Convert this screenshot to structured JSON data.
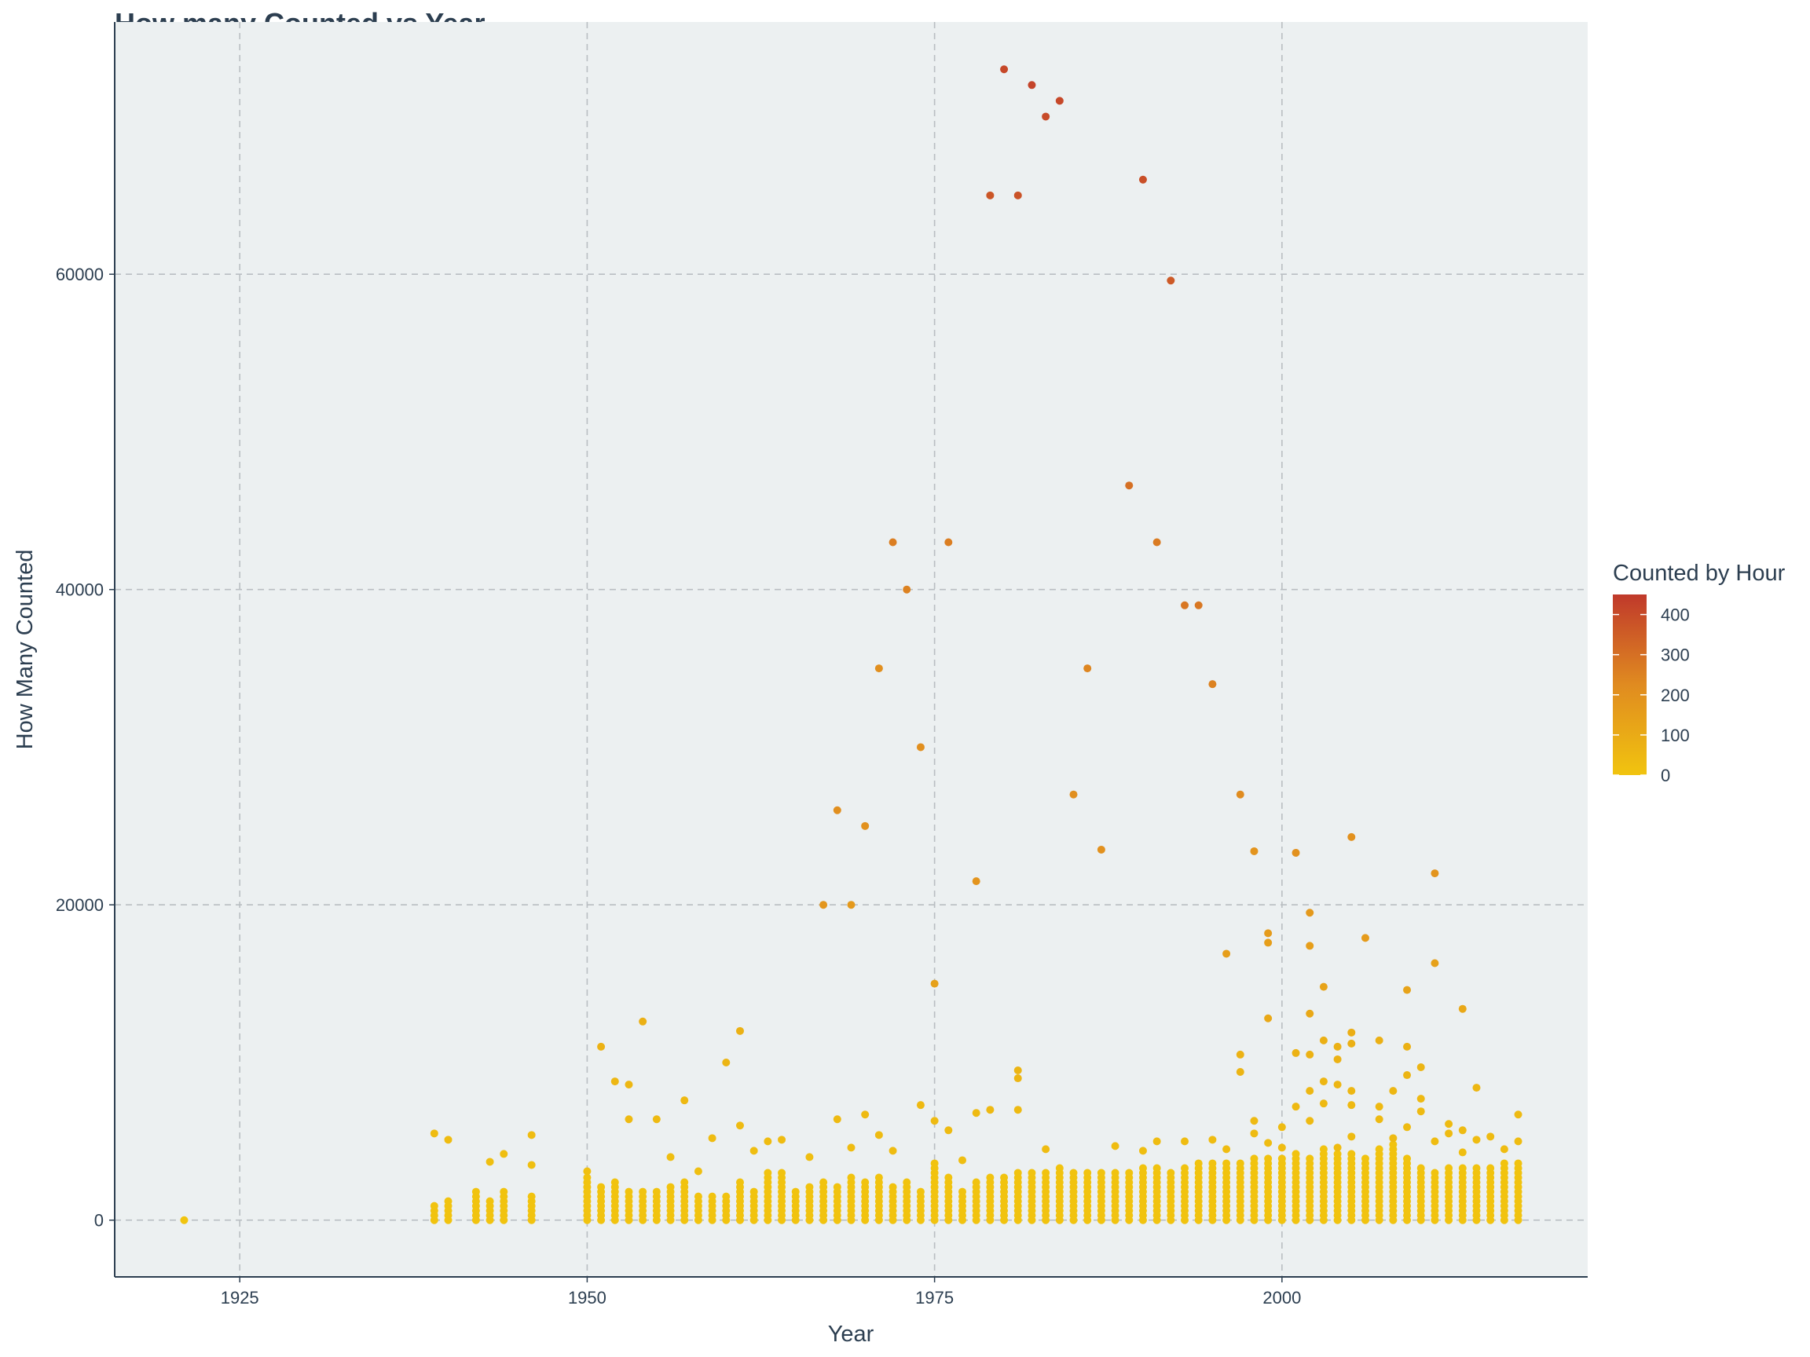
{
  "chart_data": {
    "type": "scatter",
    "title": "How many Counted vs Year",
    "xlabel": "Year",
    "ylabel": "How Many Counted",
    "xlim": [
      1916,
      2022
    ],
    "ylim": [
      -3600,
      76000
    ],
    "x_ticks": [
      1925,
      1950,
      1975,
      2000
    ],
    "y_ticks": [
      0,
      20000,
      40000,
      60000
    ],
    "x_tick_labels": [
      "1925",
      "1950",
      "1975",
      "2000"
    ],
    "y_tick_labels": [
      "0",
      "20000",
      "40000",
      "60000"
    ],
    "grid": true,
    "legend": {
      "title": "Counted by Hour",
      "placement": "right",
      "ticks": [
        0,
        100,
        200,
        300,
        400
      ],
      "tick_labels": [
        "0",
        "100",
        "200",
        "300",
        "400"
      ],
      "range": [
        0,
        450
      ],
      "colors": [
        "#f1c40f",
        "#e08b20",
        "#c0392b"
      ]
    },
    "colors": {
      "panel_background": "#ecf0f1",
      "axis_line": "#2c3e50",
      "text": "#2c3e50"
    },
    "points": [
      [
        1921,
        0,
        0
      ],
      [
        1939,
        5500,
        30
      ],
      [
        1940,
        5100,
        30
      ],
      [
        1943,
        3700,
        20
      ],
      [
        1944,
        4200,
        25
      ],
      [
        1946,
        5400,
        30
      ],
      [
        1946,
        3500,
        20
      ],
      [
        1950,
        3100,
        15
      ],
      [
        1951,
        11000,
        70
      ],
      [
        1952,
        8800,
        50
      ],
      [
        1953,
        8600,
        50
      ],
      [
        1953,
        6400,
        40
      ],
      [
        1954,
        12600,
        80
      ],
      [
        1955,
        6400,
        40
      ],
      [
        1956,
        4000,
        25
      ],
      [
        1957,
        7600,
        45
      ],
      [
        1958,
        3100,
        20
      ],
      [
        1959,
        5200,
        30
      ],
      [
        1960,
        10000,
        60
      ],
      [
        1961,
        12000,
        75
      ],
      [
        1961,
        6000,
        35
      ],
      [
        1962,
        4400,
        25
      ],
      [
        1963,
        5000,
        30
      ],
      [
        1964,
        5100,
        30
      ],
      [
        1966,
        4000,
        25
      ],
      [
        1967,
        20000,
        180
      ],
      [
        1968,
        26000,
        210
      ],
      [
        1968,
        6400,
        40
      ],
      [
        1969,
        20000,
        170
      ],
      [
        1969,
        4600,
        30
      ],
      [
        1970,
        25000,
        200
      ],
      [
        1970,
        6700,
        40
      ],
      [
        1971,
        35000,
        210
      ],
      [
        1971,
        5400,
        35
      ],
      [
        1972,
        43000,
        260
      ],
      [
        1972,
        4400,
        30
      ],
      [
        1973,
        40000,
        250
      ],
      [
        1974,
        30000,
        210
      ],
      [
        1974,
        7300,
        45
      ],
      [
        1975,
        15000,
        140
      ],
      [
        1975,
        6300,
        40
      ],
      [
        1976,
        43000,
        260
      ],
      [
        1976,
        5700,
        35
      ],
      [
        1977,
        3800,
        25
      ],
      [
        1978,
        21500,
        190
      ],
      [
        1978,
        6800,
        40
      ],
      [
        1979,
        7000,
        45
      ],
      [
        1979,
        65000,
        370
      ],
      [
        1980,
        73000,
        410
      ],
      [
        1981,
        65000,
        380
      ],
      [
        1981,
        9500,
        60
      ],
      [
        1981,
        9000,
        55
      ],
      [
        1981,
        7000,
        40
      ],
      [
        1982,
        72000,
        420
      ],
      [
        1983,
        70000,
        400
      ],
      [
        1983,
        4500,
        30
      ],
      [
        1984,
        71000,
        410
      ],
      [
        1985,
        27000,
        210
      ],
      [
        1986,
        35000,
        240
      ],
      [
        1987,
        23500,
        200
      ],
      [
        1988,
        4700,
        30
      ],
      [
        1989,
        46600,
        300
      ],
      [
        1990,
        66000,
        390
      ],
      [
        1990,
        4400,
        25
      ],
      [
        1991,
        43000,
        270
      ],
      [
        1991,
        5000,
        30
      ],
      [
        1992,
        59600,
        360
      ],
      [
        1993,
        39000,
        280
      ],
      [
        1993,
        5000,
        30
      ],
      [
        1994,
        39000,
        280
      ],
      [
        1995,
        34000,
        250
      ],
      [
        1995,
        5100,
        30
      ],
      [
        1996,
        16900,
        150
      ],
      [
        1996,
        4500,
        30
      ],
      [
        1997,
        27000,
        220
      ],
      [
        1997,
        10500,
        70
      ],
      [
        1997,
        9400,
        60
      ],
      [
        1998,
        23400,
        190
      ],
      [
        1998,
        6300,
        40
      ],
      [
        1998,
        5500,
        35
      ],
      [
        1999,
        18200,
        160
      ],
      [
        1999,
        17600,
        150
      ],
      [
        1999,
        12800,
        110
      ],
      [
        1999,
        4900,
        30
      ],
      [
        2000,
        5900,
        35
      ],
      [
        2000,
        4600,
        30
      ],
      [
        2001,
        23300,
        200
      ],
      [
        2001,
        10600,
        70
      ],
      [
        2001,
        7200,
        45
      ],
      [
        2002,
        19500,
        170
      ],
      [
        2002,
        17400,
        150
      ],
      [
        2002,
        13100,
        110
      ],
      [
        2002,
        10500,
        70
      ],
      [
        2002,
        8200,
        50
      ],
      [
        2002,
        6300,
        40
      ],
      [
        2003,
        14800,
        130
      ],
      [
        2003,
        11400,
        80
      ],
      [
        2003,
        8800,
        55
      ],
      [
        2003,
        7400,
        45
      ],
      [
        2004,
        11000,
        75
      ],
      [
        2004,
        10200,
        70
      ],
      [
        2004,
        8600,
        55
      ],
      [
        2004,
        4600,
        30
      ],
      [
        2005,
        24300,
        200
      ],
      [
        2005,
        11900,
        85
      ],
      [
        2005,
        11200,
        80
      ],
      [
        2005,
        8200,
        50
      ],
      [
        2005,
        7300,
        45
      ],
      [
        2005,
        5300,
        35
      ],
      [
        2006,
        17900,
        160
      ],
      [
        2007,
        11400,
        80
      ],
      [
        2007,
        7200,
        45
      ],
      [
        2007,
        6400,
        40
      ],
      [
        2008,
        8200,
        50
      ],
      [
        2008,
        5200,
        35
      ],
      [
        2009,
        14600,
        130
      ],
      [
        2009,
        11000,
        75
      ],
      [
        2009,
        9200,
        60
      ],
      [
        2009,
        5900,
        35
      ],
      [
        2010,
        9700,
        60
      ],
      [
        2010,
        7700,
        45
      ],
      [
        2010,
        6900,
        40
      ],
      [
        2011,
        22000,
        190
      ],
      [
        2011,
        16300,
        140
      ],
      [
        2011,
        5000,
        30
      ],
      [
        2012,
        6100,
        35
      ],
      [
        2012,
        5500,
        35
      ],
      [
        2013,
        13400,
        110
      ],
      [
        2013,
        5700,
        35
      ],
      [
        2013,
        4300,
        25
      ],
      [
        2014,
        8400,
        50
      ],
      [
        2014,
        5100,
        30
      ],
      [
        2015,
        5300,
        35
      ],
      [
        2016,
        4500,
        30
      ],
      [
        2017,
        6700,
        40
      ],
      [
        2017,
        5000,
        30
      ]
    ],
    "dense_band": {
      "years": [
        1939,
        1940,
        1942,
        1943,
        1944,
        1946,
        1950,
        1951,
        1952,
        1953,
        1954,
        1955,
        1956,
        1957,
        1958,
        1959,
        1960,
        1961,
        1962,
        1963,
        1964,
        1965,
        1966,
        1967,
        1968,
        1969,
        1970,
        1971,
        1972,
        1973,
        1974,
        1975,
        1976,
        1977,
        1978,
        1979,
        1980,
        1981,
        1982,
        1983,
        1984,
        1985,
        1986,
        1987,
        1988,
        1989,
        1990,
        1991,
        1992,
        1993,
        1994,
        1995,
        1996,
        1997,
        1998,
        1999,
        2000,
        2001,
        2002,
        2003,
        2004,
        2005,
        2006,
        2007,
        2008,
        2009,
        2010,
        2011,
        2012,
        2013,
        2014,
        2015,
        2016,
        2017
      ],
      "max_values": [
        1100,
        1400,
        1800,
        1300,
        2000,
        1500,
        2800,
        2200,
        2600,
        1800,
        2000,
        1800,
        2100,
        2500,
        1600,
        1700,
        1600,
        2500,
        2000,
        3200,
        3100,
        1900,
        2300,
        2500,
        2200,
        2800,
        2400,
        2900,
        2200,
        2400,
        1900,
        3600,
        2700,
        2000,
        2500,
        2900,
        2700,
        3000,
        3100,
        3200,
        3400,
        3200,
        3100,
        3200,
        3000,
        3100,
        3300,
        3300,
        3100,
        3300,
        3600,
        3600,
        3600,
        3800,
        3900,
        3900,
        4100,
        4300,
        4100,
        4500,
        4300,
        4300,
        4100,
        4500,
        4800,
        3900,
        3400,
        3100,
        3300,
        3400,
        3500,
        3300,
        3600,
        3600
      ],
      "hour_value": 5
    }
  }
}
